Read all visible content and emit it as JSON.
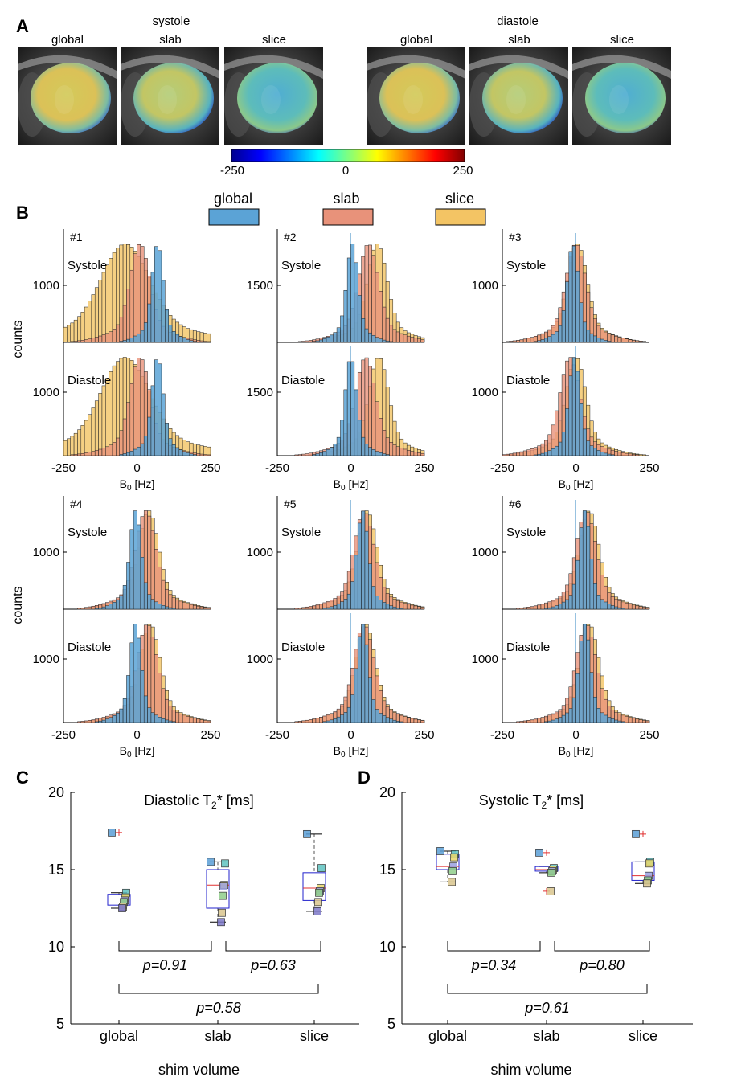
{
  "panels": {
    "a": "A",
    "b": "B",
    "c": "C",
    "d": "D"
  },
  "panel_a": {
    "phase_titles": [
      "systole",
      "diastole"
    ],
    "volume_labels": [
      "global",
      "slab",
      "slice",
      "global",
      "slab",
      "slice"
    ],
    "colorbar": {
      "ticks": [
        "-250",
        "0",
        "250"
      ],
      "min": -250,
      "max": 250
    }
  },
  "legend": {
    "items": [
      {
        "label": "global",
        "color": "#5ba3d6"
      },
      {
        "label": "slab",
        "color": "#e8927a"
      },
      {
        "label": "slice",
        "color": "#f3c464"
      }
    ]
  },
  "histogram_axis": {
    "xlabel_main": "B",
    "xlabel_sub": "0",
    "xlabel_unit": " [Hz]",
    "xticks": [
      "-250",
      "0",
      "250"
    ],
    "ylabel": "counts"
  },
  "chart_data": [
    {
      "type": "bar",
      "id": "#1",
      "phases": [
        "Systole",
        "Diastole"
      ],
      "ytick": [
        "1000",
        "1000"
      ],
      "x_range": [
        -250,
        250
      ],
      "series_peaks_hz": {
        "global": [
          70,
          70
        ],
        "slab": [
          10,
          10
        ],
        "slice": [
          -40,
          -40
        ]
      }
    },
    {
      "type": "bar",
      "id": "#2",
      "phases": [
        "Systole",
        "Diastole"
      ],
      "ytick": [
        "1500",
        "1500"
      ],
      "x_range": [
        -250,
        250
      ],
      "series_peaks_hz": {
        "global": [
          5,
          0
        ],
        "slab": [
          60,
          50
        ],
        "slice": [
          90,
          95
        ]
      }
    },
    {
      "type": "bar",
      "id": "#3",
      "phases": [
        "Systole",
        "Diastole"
      ],
      "ytick": [
        "1000",
        "1000"
      ],
      "x_range": [
        -250,
        250
      ],
      "series_peaks_hz": {
        "global": [
          -10,
          -5
        ],
        "slab": [
          0,
          -20
        ],
        "slice": [
          5,
          0
        ]
      }
    },
    {
      "type": "bar",
      "id": "#4",
      "phases": [
        "Systole",
        "Diastole"
      ],
      "ytick": [
        "1000",
        "1000"
      ],
      "x_range": [
        -250,
        250
      ],
      "series_peaks_hz": {
        "global": [
          -5,
          -5
        ],
        "slab": [
          30,
          35
        ],
        "slice": [
          40,
          45
        ]
      }
    },
    {
      "type": "bar",
      "id": "#5",
      "phases": [
        "Systole",
        "Diastole"
      ],
      "ytick": [
        "1000",
        "1000"
      ],
      "x_range": [
        -250,
        250
      ],
      "series_peaks_hz": {
        "global": [
          40,
          40
        ],
        "slab": [
          45,
          45
        ],
        "slice": [
          55,
          50
        ]
      }
    },
    {
      "type": "bar",
      "id": "#6",
      "phases": [
        "Systole",
        "Diastole"
      ],
      "ytick": [
        "1000",
        "1000"
      ],
      "x_range": [
        -250,
        250
      ],
      "series_peaks_hz": {
        "global": [
          30,
          30
        ],
        "slab": [
          35,
          35
        ],
        "slice": [
          45,
          45
        ]
      }
    },
    {
      "type": "scatter",
      "id": "C",
      "title_main": "Diastolic T",
      "title_sub": "2",
      "title_tail": "* [ms]",
      "categories": [
        "global",
        "slab",
        "slice"
      ],
      "xlabel": "shim volume",
      "ylim": [
        5,
        20
      ],
      "yticks": [
        "5",
        "10",
        "15",
        "20"
      ],
      "boxes": [
        {
          "q1": 12.7,
          "median": 13.1,
          "q3": 13.4,
          "whisker_low": 12.5,
          "whisker_high": 13.5,
          "outliers": [
            17.4
          ]
        },
        {
          "q1": 12.5,
          "median": 14.0,
          "q3": 15.0,
          "whisker_low": 11.6,
          "whisker_high": 15.5,
          "outliers": []
        },
        {
          "q1": 13.0,
          "median": 13.8,
          "q3": 14.8,
          "whisker_low": 12.3,
          "whisker_high": 17.3,
          "outliers": []
        }
      ],
      "points": [
        [
          17.4,
          13.5,
          13.2,
          13.0,
          12.9,
          12.6,
          12.5
        ],
        [
          15.5,
          15.4,
          14.0,
          13.9,
          13.3,
          12.2,
          11.6
        ],
        [
          17.3,
          15.1,
          13.8,
          13.6,
          13.5,
          12.9,
          12.3
        ]
      ],
      "pvalues": [
        "p=0.91",
        "p=0.63",
        "p=0.58"
      ]
    },
    {
      "type": "scatter",
      "id": "D",
      "title_main": "Systolic T",
      "title_sub": "2",
      "title_tail": "* [ms]",
      "categories": [
        "global",
        "slab",
        "slice"
      ],
      "xlabel": "shim volume",
      "ylim": [
        5,
        20
      ],
      "yticks": [
        "5",
        "10",
        "15",
        "20"
      ],
      "boxes": [
        {
          "q1": 15.0,
          "median": 15.2,
          "q3": 16.0,
          "whisker_low": 14.2,
          "whisker_high": 16.2,
          "outliers": []
        },
        {
          "q1": 14.9,
          "median": 15.0,
          "q3": 15.2,
          "whisker_low": 14.8,
          "whisker_high": 15.2,
          "outliers": [
            16.1,
            13.6
          ]
        },
        {
          "q1": 14.3,
          "median": 14.6,
          "q3": 15.5,
          "whisker_low": 14.1,
          "whisker_high": 15.5,
          "outliers": [
            17.3
          ]
        }
      ],
      "points": [
        [
          16.2,
          16.0,
          15.8,
          15.2,
          14.9,
          14.2
        ],
        [
          16.1,
          15.1,
          15.0,
          14.9,
          14.8,
          13.6
        ],
        [
          17.3,
          15.5,
          15.4,
          14.6,
          14.3,
          14.1
        ]
      ],
      "pvalues": [
        "p=0.34",
        "p=0.80",
        "p=0.61"
      ]
    }
  ]
}
